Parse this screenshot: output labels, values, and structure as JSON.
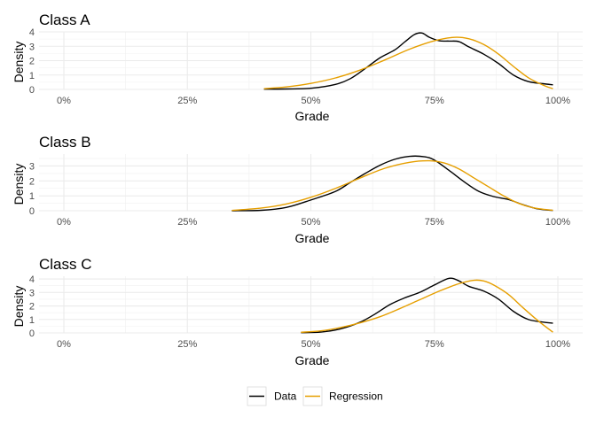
{
  "chart_data": [
    {
      "type": "line",
      "title": "Class A",
      "xlabel": "Grade",
      "ylabel": "Density",
      "xlim": [
        0,
        1
      ],
      "ylim": [
        0,
        4
      ],
      "x_ticks": [
        "0%",
        "25%",
        "50%",
        "75%",
        "100%"
      ],
      "y_ticks": [
        "0",
        "1",
        "2",
        "3",
        "4"
      ],
      "series": [
        {
          "name": "Data",
          "color": "#000000",
          "points": [
            [
              0.405,
              0.02
            ],
            [
              0.45,
              0.03
            ],
            [
              0.5,
              0.08
            ],
            [
              0.55,
              0.35
            ],
            [
              0.58,
              0.75
            ],
            [
              0.61,
              1.45
            ],
            [
              0.64,
              2.2
            ],
            [
              0.67,
              2.75
            ],
            [
              0.69,
              3.3
            ],
            [
              0.71,
              3.82
            ],
            [
              0.725,
              3.92
            ],
            [
              0.74,
              3.62
            ],
            [
              0.76,
              3.38
            ],
            [
              0.78,
              3.36
            ],
            [
              0.8,
              3.32
            ],
            [
              0.82,
              2.95
            ],
            [
              0.85,
              2.45
            ],
            [
              0.88,
              1.8
            ],
            [
              0.91,
              1.0
            ],
            [
              0.94,
              0.55
            ],
            [
              0.97,
              0.4
            ],
            [
              0.99,
              0.32
            ]
          ]
        },
        {
          "name": "Regression",
          "color": "#E69F00",
          "points": [
            [
              0.405,
              0.05
            ],
            [
              0.45,
              0.17
            ],
            [
              0.5,
              0.42
            ],
            [
              0.55,
              0.8
            ],
            [
              0.6,
              1.35
            ],
            [
              0.65,
              2.05
            ],
            [
              0.7,
              2.8
            ],
            [
              0.75,
              3.38
            ],
            [
              0.79,
              3.62
            ],
            [
              0.82,
              3.52
            ],
            [
              0.85,
              3.12
            ],
            [
              0.88,
              2.45
            ],
            [
              0.91,
              1.6
            ],
            [
              0.94,
              0.82
            ],
            [
              0.97,
              0.3
            ],
            [
              0.99,
              0.05
            ]
          ]
        }
      ]
    },
    {
      "type": "line",
      "title": "Class B",
      "xlabel": "Grade",
      "ylabel": "Density",
      "xlim": [
        0,
        1
      ],
      "ylim": [
        0,
        3.8
      ],
      "x_ticks": [
        "0%",
        "25%",
        "50%",
        "75%",
        "100%"
      ],
      "y_ticks": [
        "0",
        "1",
        "2",
        "3"
      ],
      "series": [
        {
          "name": "Data",
          "color": "#000000",
          "points": [
            [
              0.34,
              0.0
            ],
            [
              0.4,
              0.03
            ],
            [
              0.45,
              0.22
            ],
            [
              0.5,
              0.72
            ],
            [
              0.55,
              1.3
            ],
            [
              0.58,
              1.9
            ],
            [
              0.61,
              2.5
            ],
            [
              0.64,
              3.05
            ],
            [
              0.67,
              3.45
            ],
            [
              0.7,
              3.65
            ],
            [
              0.73,
              3.62
            ],
            [
              0.75,
              3.4
            ],
            [
              0.78,
              2.7
            ],
            [
              0.81,
              1.95
            ],
            [
              0.84,
              1.3
            ],
            [
              0.87,
              0.95
            ],
            [
              0.9,
              0.75
            ],
            [
              0.93,
              0.4
            ],
            [
              0.96,
              0.12
            ],
            [
              0.99,
              0.02
            ]
          ]
        },
        {
          "name": "Regression",
          "color": "#E69F00",
          "points": [
            [
              0.34,
              0.02
            ],
            [
              0.4,
              0.18
            ],
            [
              0.45,
              0.45
            ],
            [
              0.5,
              0.9
            ],
            [
              0.55,
              1.5
            ],
            [
              0.6,
              2.2
            ],
            [
              0.65,
              2.85
            ],
            [
              0.7,
              3.25
            ],
            [
              0.74,
              3.35
            ],
            [
              0.77,
              3.2
            ],
            [
              0.8,
              2.8
            ],
            [
              0.83,
              2.2
            ],
            [
              0.86,
              1.6
            ],
            [
              0.89,
              1.0
            ],
            [
              0.92,
              0.5
            ],
            [
              0.95,
              0.2
            ],
            [
              0.99,
              0.03
            ]
          ]
        }
      ]
    },
    {
      "type": "line",
      "title": "Class C",
      "xlabel": "Grade",
      "ylabel": "Density",
      "xlim": [
        0,
        1
      ],
      "ylim": [
        0,
        4.2
      ],
      "x_ticks": [
        "0%",
        "25%",
        "50%",
        "75%",
        "100%"
      ],
      "y_ticks": [
        "0",
        "1",
        "2",
        "3",
        "4"
      ],
      "series": [
        {
          "name": "Data",
          "color": "#000000",
          "points": [
            [
              0.48,
              0.02
            ],
            [
              0.52,
              0.06
            ],
            [
              0.56,
              0.3
            ],
            [
              0.6,
              0.8
            ],
            [
              0.63,
              1.4
            ],
            [
              0.66,
              2.1
            ],
            [
              0.69,
              2.6
            ],
            [
              0.72,
              3.0
            ],
            [
              0.75,
              3.55
            ],
            [
              0.78,
              4.05
            ],
            [
              0.8,
              3.85
            ],
            [
              0.82,
              3.45
            ],
            [
              0.85,
              3.1
            ],
            [
              0.88,
              2.5
            ],
            [
              0.91,
              1.6
            ],
            [
              0.94,
              1.0
            ],
            [
              0.97,
              0.8
            ],
            [
              0.99,
              0.72
            ]
          ]
        },
        {
          "name": "Regression",
          "color": "#E69F00",
          "points": [
            [
              0.48,
              0.05
            ],
            [
              0.52,
              0.15
            ],
            [
              0.56,
              0.4
            ],
            [
              0.6,
              0.75
            ],
            [
              0.64,
              1.2
            ],
            [
              0.68,
              1.8
            ],
            [
              0.72,
              2.45
            ],
            [
              0.76,
              3.1
            ],
            [
              0.8,
              3.65
            ],
            [
              0.83,
              3.9
            ],
            [
              0.85,
              3.85
            ],
            [
              0.87,
              3.55
            ],
            [
              0.9,
              2.85
            ],
            [
              0.93,
              1.85
            ],
            [
              0.96,
              0.9
            ],
            [
              0.99,
              0.05
            ]
          ]
        }
      ]
    }
  ],
  "legend": {
    "placement": "bottom",
    "items": [
      {
        "label": "Data",
        "color": "#000000"
      },
      {
        "label": "Regression",
        "color": "#E69F00"
      }
    ]
  }
}
